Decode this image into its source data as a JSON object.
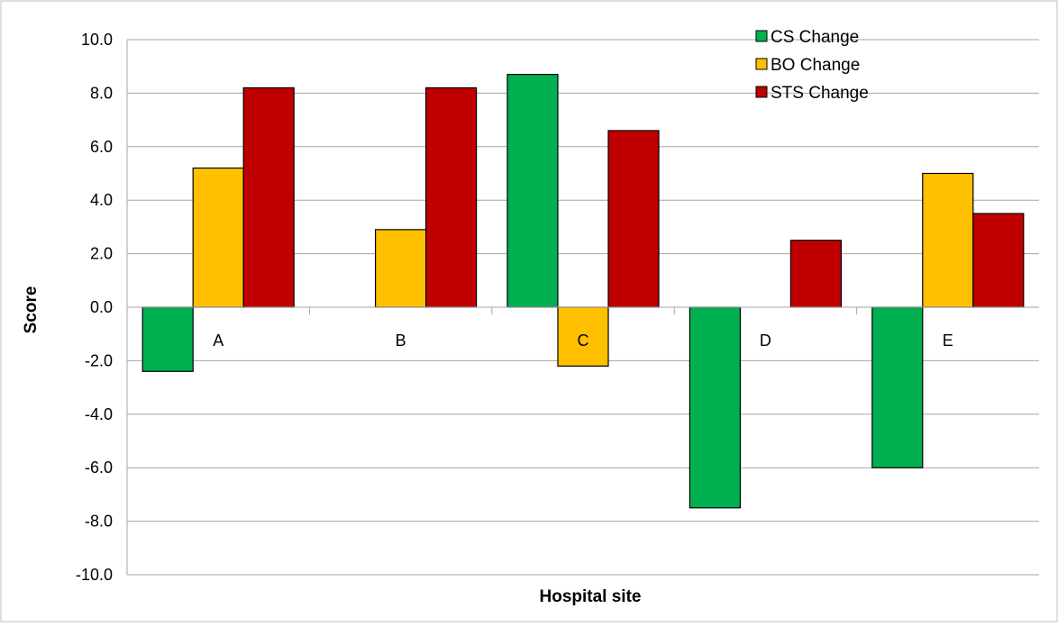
{
  "chart_data": {
    "type": "bar",
    "title": "",
    "xlabel": "Hospital site",
    "ylabel": "Score",
    "ylim": [
      -10,
      10
    ],
    "ytick_step": 2,
    "yticks": [
      "10.0",
      "8.0",
      "6.0",
      "4.0",
      "2.0",
      "0.0",
      "-2.0",
      "-4.0",
      "-6.0",
      "-8.0",
      "-10.0"
    ],
    "grid": true,
    "legend_position": "top-right",
    "categories": [
      "A",
      "B",
      "C",
      "D",
      "E"
    ],
    "series": [
      {
        "name": "CS Change",
        "color": "#00B050",
        "values": [
          -2.4,
          0,
          8.7,
          -7.5,
          -6.0
        ]
      },
      {
        "name": "BO Change",
        "color": "#FFC000",
        "values": [
          5.2,
          2.9,
          -2.2,
          0,
          5.0
        ]
      },
      {
        "name": "STS Change",
        "color": "#C00000",
        "values": [
          8.2,
          8.2,
          6.6,
          2.5,
          3.5
        ]
      }
    ]
  }
}
